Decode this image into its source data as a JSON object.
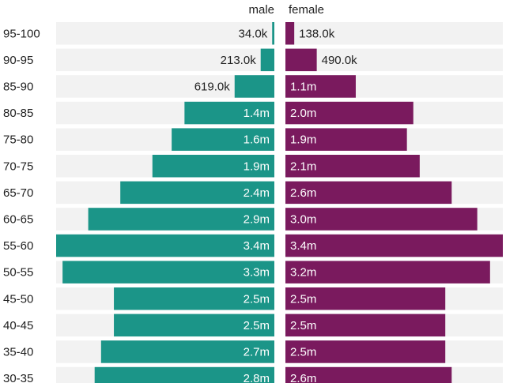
{
  "chart_data": {
    "type": "bar",
    "orientation": "horizontal-butterfly",
    "categories": [
      "95-100",
      "90-95",
      "85-90",
      "80-85",
      "75-80",
      "70-75",
      "65-70",
      "60-65",
      "55-60",
      "50-55",
      "45-50",
      "40-45",
      "35-40",
      "30-35"
    ],
    "series": [
      {
        "name": "male",
        "color": "#1b9588",
        "values": [
          34000,
          213000,
          619000,
          1400000,
          1600000,
          1900000,
          2400000,
          2900000,
          3400000,
          3300000,
          2500000,
          2500000,
          2700000,
          2800000
        ],
        "labels": [
          "34.0k",
          "213.0k",
          "619.0k",
          "1.4m",
          "1.6m",
          "1.9m",
          "2.4m",
          "2.9m",
          "3.4m",
          "3.3m",
          "2.5m",
          "2.5m",
          "2.7m",
          "2.8m"
        ]
      },
      {
        "name": "female",
        "color": "#7a1a5e",
        "values": [
          138000,
          490000,
          1100000,
          2000000,
          1900000,
          2100000,
          2600000,
          3000000,
          3400000,
          3200000,
          2500000,
          2500000,
          2500000,
          2600000
        ],
        "labels": [
          "138.0k",
          "490.0k",
          "1.1m",
          "2.0m",
          "1.9m",
          "2.1m",
          "2.6m",
          "3.0m",
          "3.4m",
          "3.2m",
          "2.5m",
          "2.5m",
          "2.5m",
          "2.6m"
        ]
      }
    ],
    "xlim": [
      0,
      3400000
    ],
    "grid": false,
    "legend": "top"
  },
  "colors": {
    "row_background": "#f2f2f2",
    "label_inside": "#ffffff",
    "label_outside": "#222222"
  }
}
